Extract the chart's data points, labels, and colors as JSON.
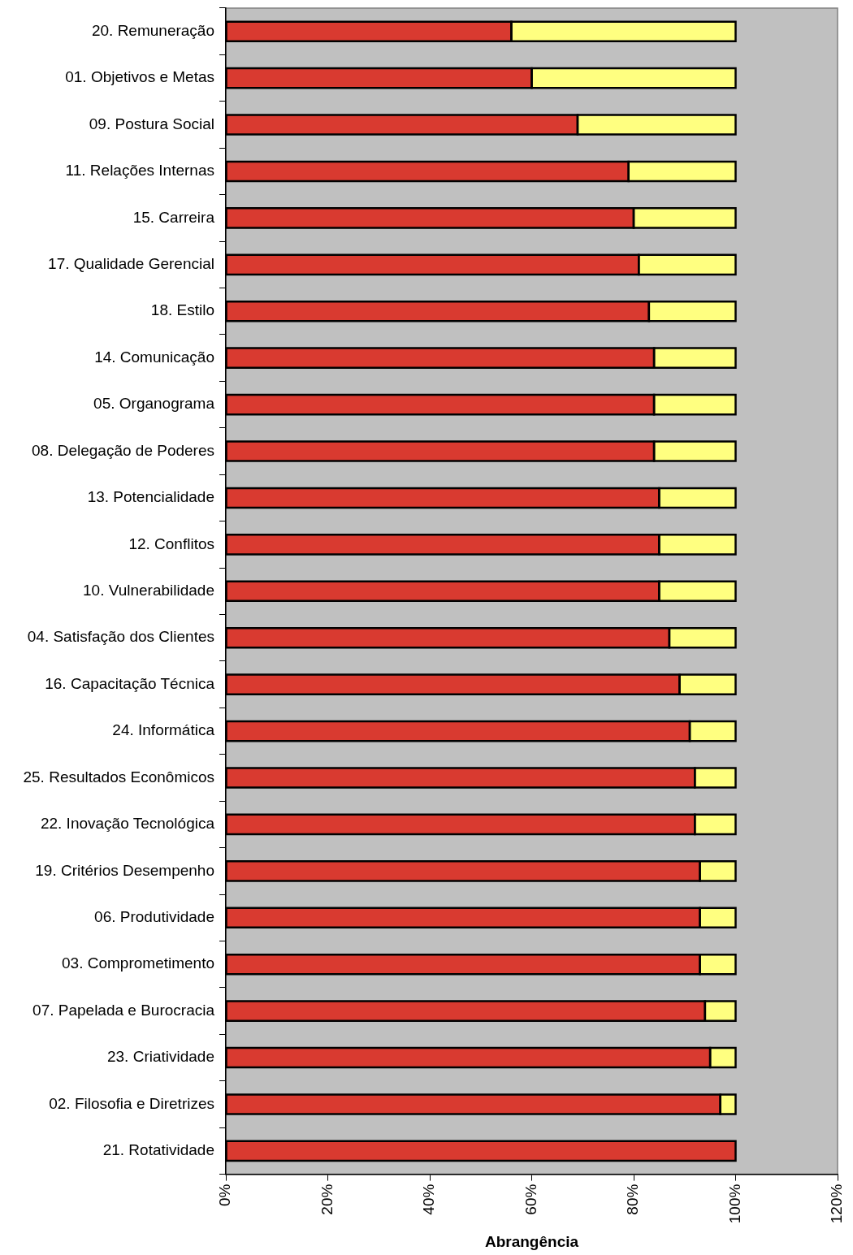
{
  "chart_data": {
    "type": "bar",
    "orientation": "horizontal",
    "stacked": true,
    "grid": false,
    "xlabel": "Abrangência",
    "categories": [
      "20. Remuneração",
      "01. Objetivos e Metas",
      "09. Postura Social",
      "11. Relações Internas",
      "15. Carreira",
      "17. Qualidade Gerencial",
      "18. Estilo",
      "14. Comunicação",
      "05. Organograma",
      "08. Delegação de Poderes",
      "13. Potencialidade",
      "12. Conflitos",
      "10. Vulnerabilidade",
      "04. Satisfação dos Clientes",
      "16. Capacitação Técnica",
      "24. Informática",
      "25. Resultados Econômicos",
      "22. Inovação Tecnológica",
      "19. Critérios Desempenho",
      "06. Produtividade",
      "03. Comprometimento",
      "07. Papelada e Burocracia",
      "23. Criatividade",
      "02. Filosofia e Diretrizes",
      "21. Rotatividade"
    ],
    "series": [
      {
        "color": "#d93a30",
        "values": [
          56,
          60,
          69,
          79,
          80,
          81,
          83,
          84,
          84,
          84,
          85,
          85,
          85,
          87,
          89,
          91,
          92,
          92,
          93,
          93,
          93,
          94,
          95,
          97,
          100
        ]
      },
      {
        "color": "#ffff80",
        "values": [
          44,
          40,
          31,
          21,
          20,
          19,
          17,
          16,
          16,
          16,
          15,
          15,
          15,
          13,
          11,
          9,
          8,
          8,
          7,
          7,
          7,
          6,
          5,
          3,
          0
        ]
      }
    ],
    "xlim": [
      0,
      120
    ],
    "xticks": [
      {
        "value": 0,
        "label": "0%"
      },
      {
        "value": 20,
        "label": "20%"
      },
      {
        "value": 40,
        "label": "40%"
      },
      {
        "value": 60,
        "label": "60%"
      },
      {
        "value": 80,
        "label": "80%"
      },
      {
        "value": 100,
        "label": "100%"
      },
      {
        "value": 120,
        "label": "120%"
      }
    ]
  }
}
